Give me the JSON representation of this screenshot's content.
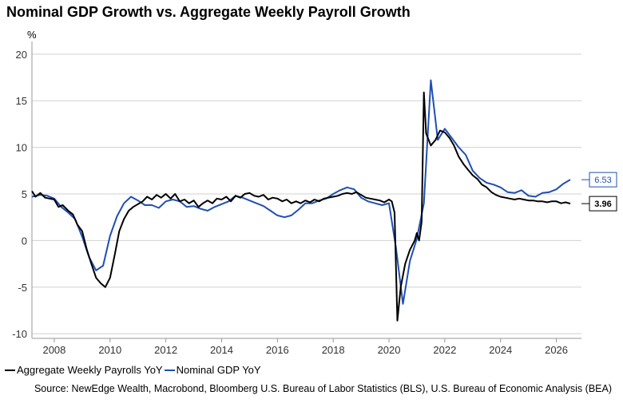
{
  "chart_data": {
    "type": "line",
    "title": "Nominal GDP Growth vs. Aggregate Weekly Payroll Growth",
    "ylabel": "%",
    "xlabel": "",
    "ylim": [
      -10.5,
      20.5
    ],
    "xlim": [
      2007.2,
      2026.9
    ],
    "yticks": [
      -10,
      -5,
      0,
      5,
      10,
      15,
      20
    ],
    "xticks": [
      2008,
      2010,
      2012,
      2014,
      2016,
      2018,
      2020,
      2022,
      2024,
      2026
    ],
    "grid": true,
    "legend_position": "bottom-left",
    "series": [
      {
        "name": "Aggregate Weekly Payrolls YoY",
        "color": "#000000",
        "last_value_label": "3.96",
        "points": [
          [
            2007.2,
            5.3
          ],
          [
            2007.33,
            4.7
          ],
          [
            2007.5,
            5.1
          ],
          [
            2007.67,
            4.6
          ],
          [
            2007.83,
            4.5
          ],
          [
            2008.0,
            4.4
          ],
          [
            2008.15,
            3.6
          ],
          [
            2008.3,
            3.8
          ],
          [
            2008.5,
            3.2
          ],
          [
            2008.67,
            2.8
          ],
          [
            2008.83,
            1.7
          ],
          [
            2009.0,
            1.0
          ],
          [
            2009.17,
            -1.0
          ],
          [
            2009.33,
            -2.5
          ],
          [
            2009.5,
            -4.0
          ],
          [
            2009.67,
            -4.6
          ],
          [
            2009.83,
            -5.0
          ],
          [
            2010.0,
            -4.0
          ],
          [
            2010.17,
            -1.5
          ],
          [
            2010.33,
            1.0
          ],
          [
            2010.5,
            2.3
          ],
          [
            2010.67,
            3.2
          ],
          [
            2010.83,
            3.6
          ],
          [
            2011.0,
            3.9
          ],
          [
            2011.17,
            4.2
          ],
          [
            2011.33,
            4.7
          ],
          [
            2011.5,
            4.4
          ],
          [
            2011.67,
            4.9
          ],
          [
            2011.83,
            4.6
          ],
          [
            2012.0,
            5.0
          ],
          [
            2012.17,
            4.5
          ],
          [
            2012.33,
            5.0
          ],
          [
            2012.5,
            4.2
          ],
          [
            2012.67,
            4.4
          ],
          [
            2012.83,
            4.0
          ],
          [
            2013.0,
            4.3
          ],
          [
            2013.17,
            3.6
          ],
          [
            2013.33,
            4.0
          ],
          [
            2013.5,
            4.3
          ],
          [
            2013.67,
            4.0
          ],
          [
            2013.83,
            4.5
          ],
          [
            2014.0,
            4.4
          ],
          [
            2014.17,
            4.7
          ],
          [
            2014.33,
            4.2
          ],
          [
            2014.5,
            4.8
          ],
          [
            2014.67,
            4.6
          ],
          [
            2014.83,
            5.0
          ],
          [
            2015.0,
            5.1
          ],
          [
            2015.17,
            4.8
          ],
          [
            2015.33,
            4.7
          ],
          [
            2015.5,
            4.9
          ],
          [
            2015.67,
            4.4
          ],
          [
            2015.83,
            4.6
          ],
          [
            2016.0,
            4.5
          ],
          [
            2016.17,
            4.2
          ],
          [
            2016.33,
            4.4
          ],
          [
            2016.5,
            4.0
          ],
          [
            2016.67,
            4.2
          ],
          [
            2016.83,
            4.0
          ],
          [
            2017.0,
            4.3
          ],
          [
            2017.17,
            4.1
          ],
          [
            2017.33,
            4.4
          ],
          [
            2017.5,
            4.2
          ],
          [
            2017.67,
            4.5
          ],
          [
            2017.83,
            4.6
          ],
          [
            2018.0,
            4.7
          ],
          [
            2018.17,
            4.8
          ],
          [
            2018.33,
            5.0
          ],
          [
            2018.5,
            5.1
          ],
          [
            2018.67,
            5.0
          ],
          [
            2018.83,
            5.2
          ],
          [
            2019.0,
            4.9
          ],
          [
            2019.17,
            4.6
          ],
          [
            2019.33,
            4.5
          ],
          [
            2019.5,
            4.4
          ],
          [
            2019.67,
            4.3
          ],
          [
            2019.83,
            4.1
          ],
          [
            2020.0,
            4.4
          ],
          [
            2020.1,
            4.2
          ],
          [
            2020.2,
            3.0
          ],
          [
            2020.3,
            -8.6
          ],
          [
            2020.42,
            -5.0
          ],
          [
            2020.58,
            -2.5
          ],
          [
            2020.75,
            -1.0
          ],
          [
            2020.92,
            0.0
          ],
          [
            2021.0,
            0.8
          ],
          [
            2021.08,
            0.0
          ],
          [
            2021.17,
            2.0
          ],
          [
            2021.25,
            15.9
          ],
          [
            2021.33,
            11.5
          ],
          [
            2021.5,
            10.2
          ],
          [
            2021.67,
            10.8
          ],
          [
            2021.83,
            11.8
          ],
          [
            2022.0,
            11.6
          ],
          [
            2022.17,
            11.0
          ],
          [
            2022.33,
            10.2
          ],
          [
            2022.5,
            9.0
          ],
          [
            2022.67,
            8.2
          ],
          [
            2022.83,
            7.6
          ],
          [
            2023.0,
            7.0
          ],
          [
            2023.17,
            6.6
          ],
          [
            2023.33,
            6.0
          ],
          [
            2023.5,
            5.7
          ],
          [
            2023.67,
            5.2
          ],
          [
            2023.83,
            4.9
          ],
          [
            2024.0,
            4.7
          ],
          [
            2024.17,
            4.6
          ],
          [
            2024.33,
            4.5
          ],
          [
            2024.5,
            4.4
          ],
          [
            2024.67,
            4.5
          ],
          [
            2024.83,
            4.4
          ],
          [
            2025.0,
            4.3
          ],
          [
            2025.17,
            4.3
          ],
          [
            2025.33,
            4.2
          ],
          [
            2025.5,
            4.2
          ],
          [
            2025.67,
            4.1
          ],
          [
            2025.83,
            4.2
          ],
          [
            2026.0,
            4.2
          ],
          [
            2026.17,
            4.0
          ],
          [
            2026.33,
            4.1
          ],
          [
            2026.5,
            3.96
          ]
        ]
      },
      {
        "name": "Nominal GDP YoY",
        "color": "#1f4fb5",
        "last_value_label": "6.53",
        "points": [
          [
            2007.2,
            4.7
          ],
          [
            2007.5,
            4.9
          ],
          [
            2007.75,
            4.8
          ],
          [
            2008.0,
            4.5
          ],
          [
            2008.25,
            3.6
          ],
          [
            2008.5,
            3.0
          ],
          [
            2008.75,
            2.3
          ],
          [
            2009.0,
            0.4
          ],
          [
            2009.25,
            -1.8
          ],
          [
            2009.5,
            -3.2
          ],
          [
            2009.75,
            -2.7
          ],
          [
            2010.0,
            0.5
          ],
          [
            2010.25,
            2.6
          ],
          [
            2010.5,
            4.0
          ],
          [
            2010.75,
            4.7
          ],
          [
            2011.0,
            4.3
          ],
          [
            2011.25,
            3.8
          ],
          [
            2011.5,
            3.8
          ],
          [
            2011.75,
            3.5
          ],
          [
            2012.0,
            4.2
          ],
          [
            2012.25,
            4.4
          ],
          [
            2012.5,
            4.2
          ],
          [
            2012.75,
            3.6
          ],
          [
            2013.0,
            3.7
          ],
          [
            2013.25,
            3.4
          ],
          [
            2013.5,
            3.2
          ],
          [
            2013.75,
            3.6
          ],
          [
            2014.0,
            3.9
          ],
          [
            2014.25,
            4.2
          ],
          [
            2014.5,
            4.8
          ],
          [
            2014.75,
            4.6
          ],
          [
            2015.0,
            4.3
          ],
          [
            2015.25,
            4.0
          ],
          [
            2015.5,
            3.7
          ],
          [
            2015.75,
            3.2
          ],
          [
            2016.0,
            2.7
          ],
          [
            2016.25,
            2.5
          ],
          [
            2016.5,
            2.7
          ],
          [
            2016.75,
            3.3
          ],
          [
            2017.0,
            4.0
          ],
          [
            2017.25,
            4.0
          ],
          [
            2017.5,
            4.3
          ],
          [
            2017.75,
            4.5
          ],
          [
            2018.0,
            5.0
          ],
          [
            2018.25,
            5.4
          ],
          [
            2018.5,
            5.7
          ],
          [
            2018.75,
            5.5
          ],
          [
            2019.0,
            4.6
          ],
          [
            2019.25,
            4.2
          ],
          [
            2019.5,
            4.0
          ],
          [
            2019.75,
            3.8
          ],
          [
            2020.0,
            4.0
          ],
          [
            2020.25,
            -0.8
          ],
          [
            2020.5,
            -6.8
          ],
          [
            2020.75,
            -2.2
          ],
          [
            2021.0,
            0.2
          ],
          [
            2021.25,
            4.0
          ],
          [
            2021.5,
            17.2
          ],
          [
            2021.75,
            10.8
          ],
          [
            2022.0,
            12.0
          ],
          [
            2022.25,
            11.0
          ],
          [
            2022.5,
            10.0
          ],
          [
            2022.75,
            9.2
          ],
          [
            2023.0,
            7.5
          ],
          [
            2023.25,
            6.7
          ],
          [
            2023.5,
            6.2
          ],
          [
            2023.75,
            6.0
          ],
          [
            2024.0,
            5.7
          ],
          [
            2024.25,
            5.2
          ],
          [
            2024.5,
            5.1
          ],
          [
            2024.75,
            5.4
          ],
          [
            2025.0,
            4.8
          ],
          [
            2025.25,
            4.7
          ],
          [
            2025.5,
            5.1
          ],
          [
            2025.75,
            5.2
          ],
          [
            2026.0,
            5.5
          ],
          [
            2026.25,
            6.1
          ],
          [
            2026.5,
            6.53
          ]
        ]
      }
    ],
    "source": "Source: NewEdge Wealth, Macrobond, Bloomberg U.S. Bureau of Labor Statistics (BLS), U.S. Bureau of Economic Analysis (BEA)"
  }
}
